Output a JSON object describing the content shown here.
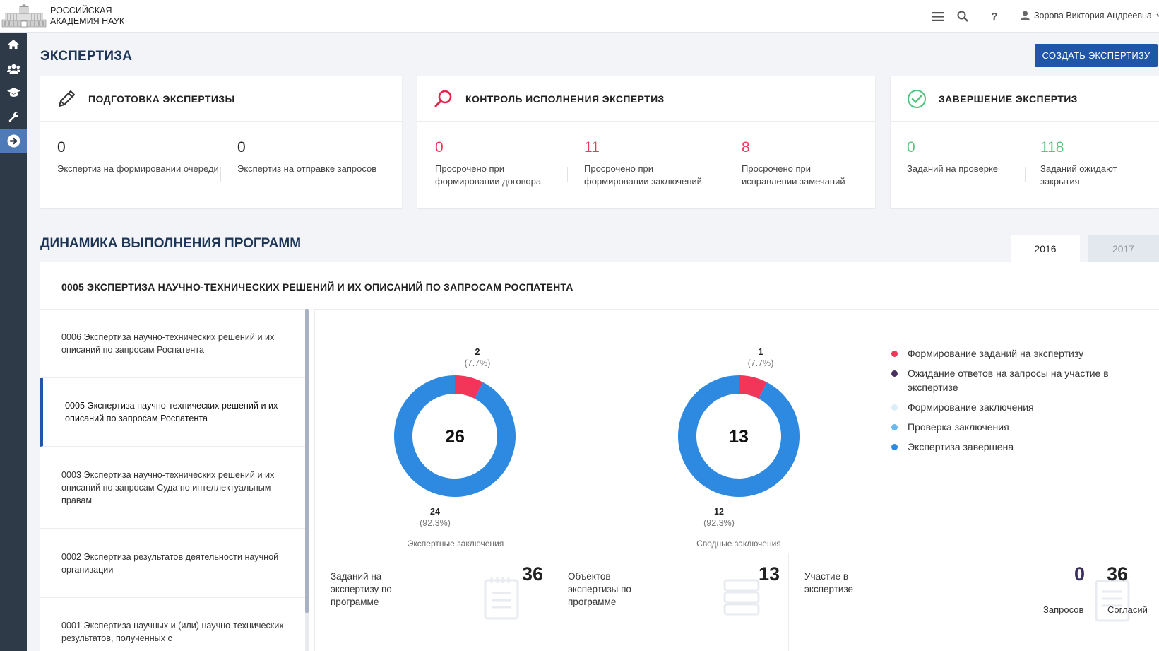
{
  "header": {
    "org_line1": "РОССИЙСКАЯ",
    "org_line2": "АКАДЕМИЯ НАУК",
    "user_name": "Зорова Виктория Андреевна",
    "icons": [
      "menu-icon",
      "search-icon",
      "help-icon",
      "user-icon",
      "chevron-down-icon"
    ]
  },
  "sidebar": {
    "items": [
      {
        "icon": "home-icon"
      },
      {
        "icon": "users-icon"
      },
      {
        "icon": "graduation-cap-icon"
      },
      {
        "icon": "wrench-icon"
      },
      {
        "icon": "arrow-right-circle-icon",
        "active": true
      }
    ]
  },
  "page": {
    "title": "ЭКСПЕРТИЗА",
    "create_button": "СОЗДАТЬ ЭКСПЕРТИЗУ"
  },
  "cards": [
    {
      "title": "ПОДГОТОВКА ЭКСПЕРТИЗЫ",
      "icon": "pencil-icon",
      "metrics": [
        {
          "value": "0",
          "label": "Экспертиз на формировании очереди"
        },
        {
          "value": "0",
          "label": "Экспертиз на отправке запросов"
        }
      ]
    },
    {
      "title": "КОНТРОЛЬ ИСПОЛНЕНИЯ ЭКСПЕРТИЗ",
      "icon": "magnifier-icon",
      "metrics": [
        {
          "value": "0",
          "label": "Просрочено при формировании договора"
        },
        {
          "value": "11",
          "label": "Просрочено при формировании заключений"
        },
        {
          "value": "8",
          "label": "Просрочено при исправлении замечаний"
        }
      ]
    },
    {
      "title": "ЗАВЕРШЕНИЕ ЭКСПЕРТИЗ",
      "icon": "check-circle-icon",
      "metrics": [
        {
          "value": "0",
          "label": "Заданий на проверке"
        },
        {
          "value": "118",
          "label": "Заданий ожидают закрытия"
        }
      ]
    }
  ],
  "dynamics": {
    "title": "ДИНАМИКА ВЫПОЛНЕНИЯ ПРОГРАММ",
    "years": [
      "2016",
      "2017"
    ],
    "selected_year": "2016",
    "panel_title": "0005 ЭКСПЕРТИЗА НАУЧНО-ТЕХНИЧЕСКИХ РЕШЕНИЙ И ИХ ОПИСАНИЙ ПО ЗАПРОСАМ РОСПАТЕНТА",
    "programs": [
      "0006 Экспертиза научно-технических решений и их описаний по запросам Роспатента",
      "0005 Экспертиза научно-технических решений и их описаний по запросам Роспатента",
      "0003 Экспертиза научно-технических решений и их описаний по запросам Суда по интеллектуальным правам",
      "0002 Экспертиза результатов деятельности научной организации",
      "0001 Экспертиза научных и (или) научно-технических результатов, полученных с"
    ],
    "active_program_index": 1
  },
  "chart_data": [
    {
      "type": "pie",
      "title": "Экспертные заключения",
      "total": "26",
      "slices": [
        {
          "value": 2,
          "label": "2",
          "percent": "(7.7%)",
          "color": "#f2365a"
        },
        {
          "value": 24,
          "label": "24",
          "percent": "(92.3%)",
          "color": "#2e8ae0"
        }
      ]
    },
    {
      "type": "pie",
      "title": "Сводные заключения",
      "total": "13",
      "slices": [
        {
          "value": 1,
          "label": "1",
          "percent": "(7.7%)",
          "color": "#f2365a"
        },
        {
          "value": 12,
          "label": "12",
          "percent": "(92.3%)",
          "color": "#2e8ae0"
        }
      ]
    }
  ],
  "legend": [
    {
      "label": "Формирование заданий на экспертизу",
      "color": "#f2365a"
    },
    {
      "label": "Ожидание ответов на запросы на участие в экспертизе",
      "color": "#4b2f5c"
    },
    {
      "label": "Формирование заключения",
      "color": "#ddeefb"
    },
    {
      "label": "Проверка заключения",
      "color": "#6bb8ee"
    },
    {
      "label": "Экспертиза завершена",
      "color": "#2e8ae0"
    }
  ],
  "bottom_stats": {
    "tasks": {
      "label": "Заданий на экспертизу по программе",
      "value": "36"
    },
    "objects": {
      "label": "Объектов экспертизы по программе",
      "value": "13"
    },
    "participation": {
      "label": "Участие в экспертизе",
      "requests_value": "0",
      "requests_label": "Запросов",
      "agreements_value": "36",
      "agreements_label": "Согласий"
    }
  }
}
